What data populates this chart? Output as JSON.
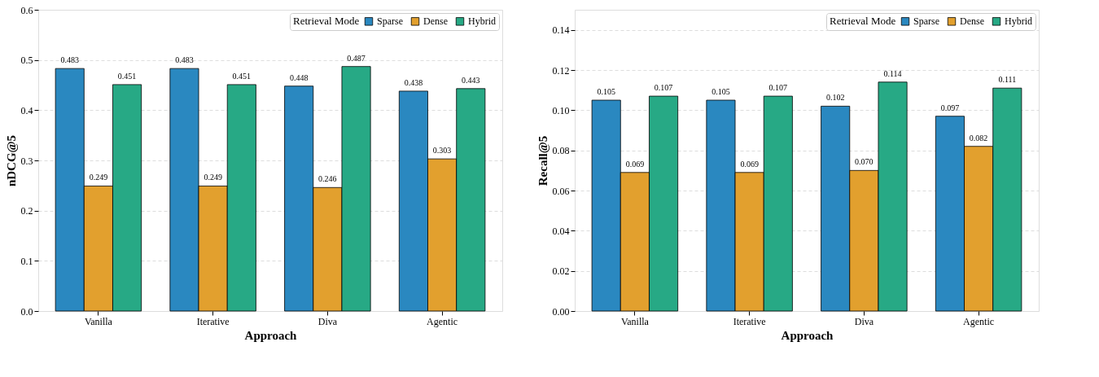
{
  "chart_data": [
    {
      "type": "bar",
      "xlabel": "Approach",
      "ylabel": "nDCG@5",
      "legend_title": "Retrieval Mode",
      "legend": "top right",
      "grid": "y",
      "line_style": "dashed",
      "categories": [
        "Vanilla",
        "Iterative",
        "Diva",
        "Agentic"
      ],
      "series": [
        {
          "name": "Sparse",
          "color": "#2a88c0",
          "values": [
            0.483,
            0.483,
            0.448,
            0.438
          ],
          "value_labels": [
            "0.483",
            "0.483",
            "0.448",
            "0.438"
          ]
        },
        {
          "name": "Dense",
          "color": "#e2a02e",
          "values": [
            0.249,
            0.249,
            0.246,
            0.303
          ],
          "value_labels": [
            "0.249",
            "0.249",
            "0.246",
            "0.303"
          ]
        },
        {
          "name": "Hybrid",
          "color": "#27a985",
          "values": [
            0.451,
            0.451,
            0.487,
            0.443
          ],
          "value_labels": [
            "0.451",
            "0.451",
            "0.487",
            "0.443"
          ]
        }
      ],
      "ylim": [
        0,
        0.6
      ],
      "yticks": [
        {
          "value": 0,
          "label": "0.0"
        },
        {
          "value": 0.1,
          "label": "0.1"
        },
        {
          "value": 0.2,
          "label": "0.2"
        },
        {
          "value": 0.3,
          "label": "0.3"
        },
        {
          "value": 0.4,
          "label": "0.4"
        },
        {
          "value": 0.5,
          "label": "0.5"
        },
        {
          "value": 0.6,
          "label": "0.6"
        }
      ]
    },
    {
      "type": "bar",
      "xlabel": "Approach",
      "ylabel": "Recall@5",
      "legend_title": "Retrieval Mode",
      "legend": "top right",
      "grid": "y",
      "line_style": "dashed",
      "categories": [
        "Vanilla",
        "Iterative",
        "Diva",
        "Agentic"
      ],
      "series": [
        {
          "name": "Sparse",
          "color": "#2a88c0",
          "values": [
            0.105,
            0.105,
            0.102,
            0.097
          ],
          "value_labels": [
            "0.105",
            "0.105",
            "0.102",
            "0.097"
          ]
        },
        {
          "name": "Dense",
          "color": "#e2a02e",
          "values": [
            0.069,
            0.069,
            0.07,
            0.082
          ],
          "value_labels": [
            "0.069",
            "0.069",
            "0.070",
            "0.082"
          ]
        },
        {
          "name": "Hybrid",
          "color": "#27a985",
          "values": [
            0.107,
            0.107,
            0.114,
            0.111
          ],
          "value_labels": [
            "0.107",
            "0.107",
            "0.114",
            "0.111"
          ]
        }
      ],
      "ylim": [
        0,
        0.15
      ],
      "yticks": [
        {
          "value": 0,
          "label": "0.00"
        },
        {
          "value": 0.02,
          "label": "0.02"
        },
        {
          "value": 0.04,
          "label": "0.04"
        },
        {
          "value": 0.06,
          "label": "0.06"
        },
        {
          "value": 0.08,
          "label": "0.08"
        },
        {
          "value": 0.1,
          "label": "0.10"
        },
        {
          "value": 0.12,
          "label": "0.12"
        },
        {
          "value": 0.14,
          "label": "0.14"
        }
      ]
    }
  ]
}
